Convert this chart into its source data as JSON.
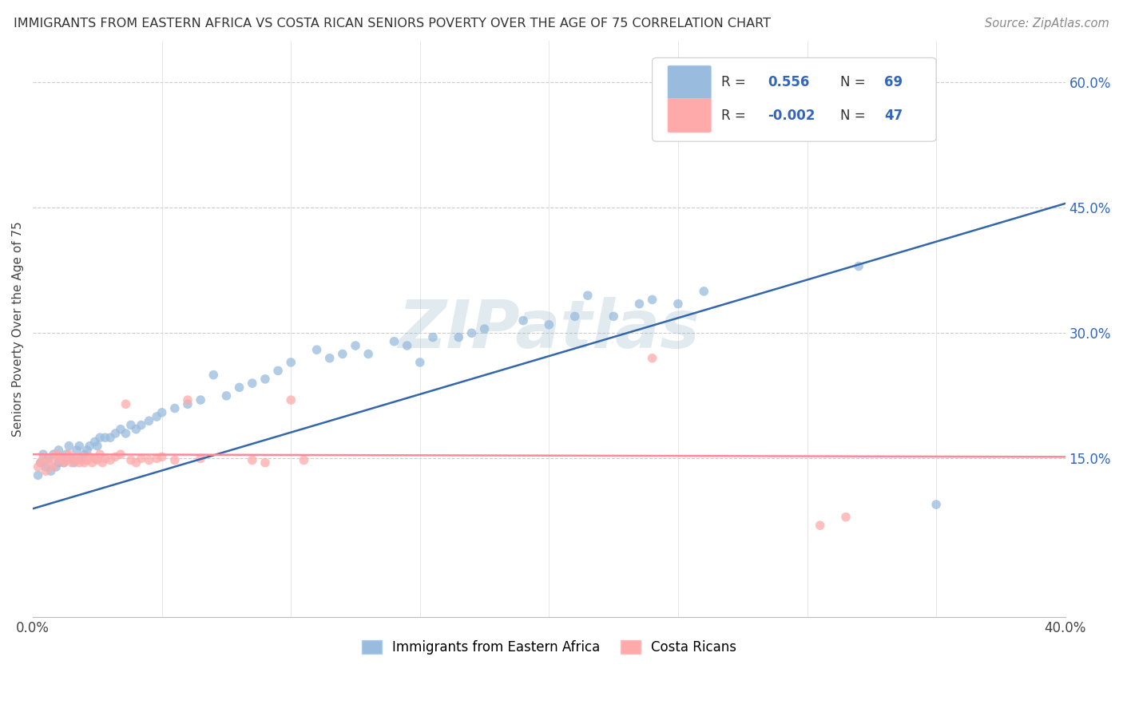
{
  "title": "IMMIGRANTS FROM EASTERN AFRICA VS COSTA RICAN SENIORS POVERTY OVER THE AGE OF 75 CORRELATION CHART",
  "source": "Source: ZipAtlas.com",
  "ylabel": "Seniors Poverty Over the Age of 75",
  "y_tick_labels": [
    "15.0%",
    "30.0%",
    "45.0%",
    "60.0%"
  ],
  "y_tick_values": [
    0.15,
    0.3,
    0.45,
    0.6
  ],
  "xlim": [
    0.0,
    0.4
  ],
  "ylim": [
    -0.04,
    0.65
  ],
  "blue_R": "0.556",
  "blue_N": "69",
  "pink_R": "-0.002",
  "pink_N": "47",
  "blue_color": "#99BBDD",
  "pink_color": "#FFAAAA",
  "blue_line_color": "#3366AA",
  "pink_line_color": "#FF8899",
  "label_color": "#3366BB",
  "watermark": "ZIPatlas",
  "watermark_color": "#99BBCC",
  "legend_label_blue": "Immigrants from Eastern Africa",
  "legend_label_pink": "Costa Ricans",
  "blue_line_x0": 0.0,
  "blue_line_x1": 0.4,
  "blue_line_y0": 0.09,
  "blue_line_y1": 0.455,
  "pink_line_x0": 0.0,
  "pink_line_x1": 0.4,
  "pink_line_y0": 0.155,
  "pink_line_y1": 0.152,
  "blue_scatter_x": [
    0.002,
    0.003,
    0.004,
    0.005,
    0.006,
    0.007,
    0.008,
    0.009,
    0.01,
    0.01,
    0.011,
    0.012,
    0.013,
    0.014,
    0.015,
    0.016,
    0.017,
    0.018,
    0.019,
    0.02,
    0.021,
    0.022,
    0.024,
    0.025,
    0.026,
    0.028,
    0.03,
    0.032,
    0.034,
    0.036,
    0.038,
    0.04,
    0.042,
    0.045,
    0.048,
    0.05,
    0.055,
    0.06,
    0.065,
    0.07,
    0.075,
    0.08,
    0.085,
    0.09,
    0.095,
    0.1,
    0.11,
    0.115,
    0.12,
    0.125,
    0.13,
    0.14,
    0.145,
    0.15,
    0.155,
    0.165,
    0.17,
    0.175,
    0.19,
    0.2,
    0.21,
    0.215,
    0.225,
    0.235,
    0.24,
    0.25,
    0.26,
    0.32,
    0.35
  ],
  "blue_scatter_y": [
    0.13,
    0.145,
    0.155,
    0.14,
    0.15,
    0.135,
    0.155,
    0.14,
    0.145,
    0.16,
    0.15,
    0.145,
    0.155,
    0.165,
    0.15,
    0.145,
    0.16,
    0.165,
    0.15,
    0.155,
    0.16,
    0.165,
    0.17,
    0.165,
    0.175,
    0.175,
    0.175,
    0.18,
    0.185,
    0.18,
    0.19,
    0.185,
    0.19,
    0.195,
    0.2,
    0.205,
    0.21,
    0.215,
    0.22,
    0.25,
    0.225,
    0.235,
    0.24,
    0.245,
    0.255,
    0.265,
    0.28,
    0.27,
    0.275,
    0.285,
    0.275,
    0.29,
    0.285,
    0.265,
    0.295,
    0.295,
    0.3,
    0.305,
    0.315,
    0.31,
    0.32,
    0.345,
    0.32,
    0.335,
    0.34,
    0.335,
    0.35,
    0.38,
    0.095
  ],
  "pink_scatter_x": [
    0.002,
    0.003,
    0.004,
    0.005,
    0.006,
    0.007,
    0.008,
    0.009,
    0.01,
    0.011,
    0.012,
    0.013,
    0.014,
    0.015,
    0.016,
    0.017,
    0.018,
    0.019,
    0.02,
    0.021,
    0.022,
    0.023,
    0.024,
    0.025,
    0.026,
    0.027,
    0.028,
    0.03,
    0.032,
    0.034,
    0.036,
    0.038,
    0.04,
    0.042,
    0.045,
    0.048,
    0.05,
    0.055,
    0.06,
    0.065,
    0.085,
    0.09,
    0.1,
    0.105,
    0.24,
    0.305,
    0.315
  ],
  "pink_scatter_y": [
    0.14,
    0.145,
    0.15,
    0.135,
    0.145,
    0.15,
    0.14,
    0.155,
    0.148,
    0.152,
    0.145,
    0.148,
    0.155,
    0.145,
    0.15,
    0.148,
    0.145,
    0.152,
    0.145,
    0.148,
    0.152,
    0.145,
    0.15,
    0.148,
    0.155,
    0.145,
    0.15,
    0.148,
    0.152,
    0.155,
    0.215,
    0.148,
    0.145,
    0.15,
    0.148,
    0.15,
    0.152,
    0.148,
    0.22,
    0.15,
    0.148,
    0.145,
    0.22,
    0.148,
    0.27,
    0.07,
    0.08
  ]
}
